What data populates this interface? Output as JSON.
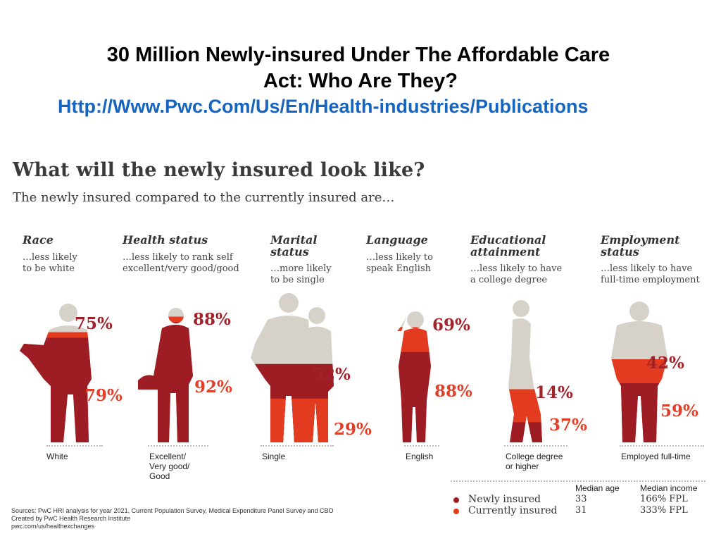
{
  "slide": {
    "title_line1": "30 Million Newly-insured Under The Affordable Care",
    "title_line2": "Act: Who Are They?",
    "link": "Http://Www.Pwc.Com/Us/En/Health-industries/Publications"
  },
  "infographic": {
    "title": "What will the newly insured look like?",
    "subtitle": "The newly insured compared to the currently insured are…"
  },
  "colors": {
    "newly_insured": "#9e1c24",
    "currently_insured": "#e23b1f",
    "silhouette": "#d6d2c9",
    "text_newly": "#a0222a",
    "text_currently": "#e0402a"
  },
  "chart_data": {
    "type": "bar",
    "categories": [
      "Race",
      "Health status",
      "Marital\nstatus",
      "Language",
      "Educational\nattainment",
      "Employment\nstatus"
    ],
    "descriptions": [
      "…less likely\nto be white",
      "…less likely to rank self\nexcellent/very good/good",
      "…more likely\nto be single",
      "…less likely to\nspeak English",
      "…less likely to have\na college degree",
      "…less likely to have\nfull-time employment"
    ],
    "figure_labels": [
      "White",
      "Excellent/\nVery good/\nGood",
      "Single",
      "English",
      "College degree\nor higher",
      "Employed full-time"
    ],
    "series": [
      {
        "name": "Newly insured",
        "values": [
          75,
          88,
          52,
          69,
          14,
          42
        ],
        "labels": [
          "75%",
          "88%",
          "52%",
          "69%",
          "14%",
          "42%"
        ]
      },
      {
        "name": "Currently insured",
        "values": [
          79,
          92,
          29,
          88,
          37,
          59
        ],
        "labels": [
          "79%",
          "92%",
          "29%",
          "88%",
          "37%",
          "59%"
        ]
      }
    ],
    "unit": "%",
    "ylim": [
      0,
      100
    ],
    "legend": {
      "position": "bottom-right",
      "median_age_header": "Median age",
      "median_income_header": "Median income",
      "rows": [
        {
          "name": "Newly insured",
          "median_age": "33",
          "median_income": "166% FPL"
        },
        {
          "name": "Currently insured",
          "median_age": "31",
          "median_income": "333% FPL"
        }
      ]
    }
  },
  "sources": {
    "line1": "Sources: PwC HRI analysis for year 2021, Current Population Survey, Medical Expenditure Panel Survey and CBO",
    "line2": "Created by PwC Health Research Institute",
    "line3": "pwc.com/us/healthexchanges"
  }
}
